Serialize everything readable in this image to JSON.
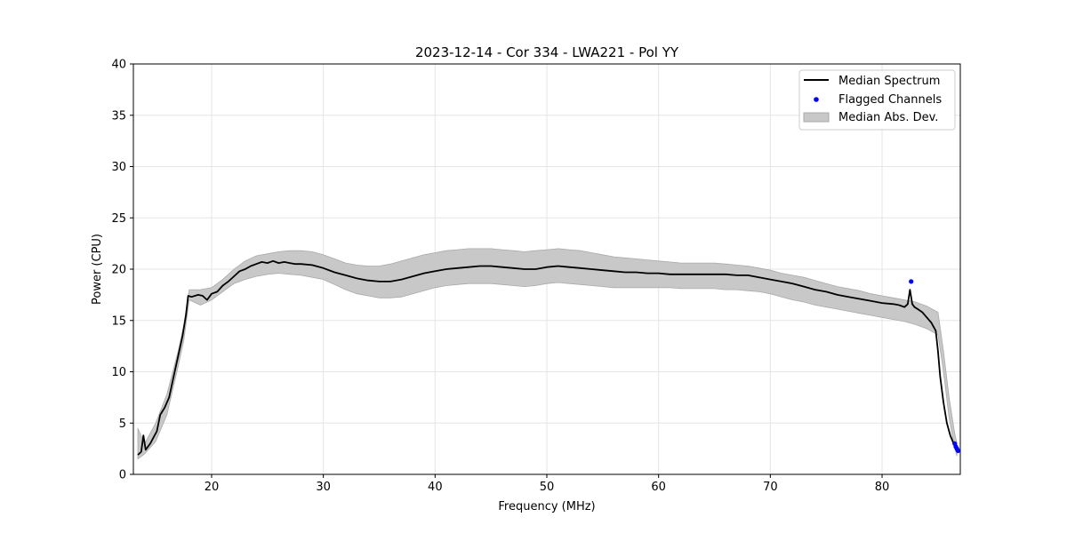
{
  "chart_data": {
    "type": "line",
    "title": "2023-12-14 - Cor 334 - LWA221 - Pol YY",
    "xlabel": "Frequency (MHz)",
    "ylabel": "Power (CPU)",
    "xlim": [
      13.0,
      87.0
    ],
    "ylim": [
      0,
      40
    ],
    "xticks": [
      20,
      30,
      40,
      50,
      60,
      70,
      80
    ],
    "yticks": [
      0,
      5,
      10,
      15,
      20,
      25,
      30,
      35,
      40
    ],
    "grid": true,
    "legend_position": "top-right",
    "legend": [
      "Median Spectrum",
      "Flagged Channels",
      "Median Abs. Dev."
    ],
    "colors": {
      "median": "#000000",
      "flagged": "#0000ff",
      "band": "#c8c8c8",
      "band_edge": "#aaaaaa"
    },
    "series": [
      {
        "name": "Median Spectrum",
        "style": "line",
        "x": [
          13.4,
          13.7,
          13.9,
          14.1,
          14.5,
          14.9,
          15.1,
          15.4,
          15.8,
          16.2,
          16.6,
          17.0,
          17.4,
          17.7,
          17.9,
          18.2,
          18.8,
          19.2,
          19.6,
          20.0,
          20.5,
          21.0,
          21.5,
          22.0,
          22.5,
          23.0,
          23.5,
          24.0,
          24.5,
          25.0,
          25.5,
          26.0,
          26.5,
          27.0,
          27.5,
          28.0,
          29.0,
          30.0,
          31.0,
          32.0,
          33.0,
          34.0,
          35.0,
          36.0,
          37.0,
          38.0,
          39.0,
          40.0,
          41.0,
          42.0,
          43.0,
          44.0,
          45.0,
          46.0,
          47.0,
          48.0,
          49.0,
          50.0,
          51.0,
          52.0,
          53.0,
          54.0,
          55.0,
          56.0,
          57.0,
          58.0,
          59.0,
          60.0,
          61.0,
          62.0,
          63.0,
          64.0,
          65.0,
          66.0,
          67.0,
          68.0,
          69.0,
          70.0,
          71.0,
          72.0,
          73.0,
          74.0,
          75.0,
          76.0,
          77.0,
          78.0,
          79.0,
          80.0,
          81.0,
          81.5,
          82.0,
          82.3,
          82.5,
          82.7,
          82.9,
          83.2,
          83.6,
          84.0,
          84.4,
          84.8,
          85.0,
          85.2,
          85.5,
          85.8,
          86.1,
          86.4,
          86.7
        ],
        "y": [
          1.9,
          2.2,
          3.8,
          2.4,
          3.0,
          3.8,
          4.2,
          5.8,
          6.5,
          7.5,
          9.5,
          11.5,
          13.5,
          15.5,
          17.4,
          17.3,
          17.5,
          17.4,
          17.0,
          17.6,
          17.8,
          18.4,
          18.8,
          19.3,
          19.8,
          20.0,
          20.3,
          20.5,
          20.7,
          20.6,
          20.8,
          20.6,
          20.7,
          20.6,
          20.5,
          20.5,
          20.4,
          20.1,
          19.7,
          19.4,
          19.1,
          18.9,
          18.8,
          18.8,
          19.0,
          19.3,
          19.6,
          19.8,
          20.0,
          20.1,
          20.2,
          20.3,
          20.3,
          20.2,
          20.1,
          20.0,
          20.0,
          20.2,
          20.3,
          20.2,
          20.1,
          20.0,
          19.9,
          19.8,
          19.7,
          19.7,
          19.6,
          19.6,
          19.5,
          19.5,
          19.5,
          19.5,
          19.5,
          19.5,
          19.4,
          19.4,
          19.2,
          19.0,
          18.8,
          18.6,
          18.3,
          18.0,
          17.8,
          17.5,
          17.3,
          17.1,
          16.9,
          16.7,
          16.6,
          16.5,
          16.3,
          16.6,
          18.0,
          16.6,
          16.3,
          16.1,
          15.8,
          15.3,
          14.8,
          14.0,
          12.0,
          9.5,
          7.0,
          5.0,
          3.8,
          3.0,
          2.4
        ]
      },
      {
        "name": "Median Abs. Dev.",
        "style": "band",
        "x": [
          13.4,
          14.0,
          15.0,
          16.0,
          17.0,
          17.5,
          18.0,
          19.0,
          20.0,
          21.0,
          22.0,
          23.0,
          24.0,
          25.0,
          26.0,
          27.0,
          28.0,
          29.0,
          30.0,
          31.0,
          32.0,
          33.0,
          34.0,
          35.0,
          36.0,
          37.0,
          38.0,
          39.0,
          40.0,
          41.0,
          42.0,
          43.0,
          44.0,
          45.0,
          46.0,
          47.0,
          48.0,
          49.0,
          50.0,
          51.0,
          52.0,
          53.0,
          54.0,
          55.0,
          56.0,
          57.0,
          58.0,
          59.0,
          60.0,
          61.0,
          62.0,
          63.0,
          64.0,
          65.0,
          66.0,
          67.0,
          68.0,
          69.0,
          70.0,
          71.0,
          72.0,
          73.0,
          74.0,
          75.0,
          76.0,
          77.0,
          78.0,
          79.0,
          80.0,
          81.0,
          82.0,
          83.0,
          84.0,
          85.0,
          85.5,
          86.0,
          86.5,
          86.7
        ],
        "upper": [
          4.5,
          3.0,
          5.0,
          7.8,
          12.0,
          14.5,
          18.0,
          18.0,
          18.2,
          19.0,
          20.0,
          20.8,
          21.3,
          21.5,
          21.7,
          21.8,
          21.8,
          21.7,
          21.4,
          21.0,
          20.6,
          20.4,
          20.3,
          20.3,
          20.5,
          20.8,
          21.1,
          21.4,
          21.6,
          21.8,
          21.9,
          22.0,
          22.0,
          22.0,
          21.9,
          21.8,
          21.7,
          21.8,
          21.9,
          22.0,
          21.9,
          21.8,
          21.6,
          21.4,
          21.2,
          21.1,
          21.0,
          20.9,
          20.8,
          20.7,
          20.6,
          20.6,
          20.6,
          20.6,
          20.5,
          20.4,
          20.3,
          20.1,
          19.9,
          19.6,
          19.4,
          19.2,
          18.9,
          18.6,
          18.3,
          18.1,
          17.9,
          17.6,
          17.4,
          17.2,
          17.0,
          16.8,
          16.4,
          15.8,
          12.0,
          7.5,
          4.0,
          3.0
        ],
        "lower": [
          1.5,
          2.0,
          3.2,
          5.8,
          10.5,
          13.0,
          17.0,
          16.5,
          17.0,
          17.8,
          18.6,
          19.0,
          19.3,
          19.5,
          19.6,
          19.5,
          19.4,
          19.2,
          19.0,
          18.5,
          18.0,
          17.6,
          17.4,
          17.2,
          17.2,
          17.3,
          17.6,
          17.9,
          18.2,
          18.4,
          18.5,
          18.6,
          18.6,
          18.6,
          18.5,
          18.4,
          18.3,
          18.4,
          18.6,
          18.7,
          18.6,
          18.5,
          18.4,
          18.3,
          18.2,
          18.2,
          18.2,
          18.2,
          18.2,
          18.2,
          18.1,
          18.1,
          18.1,
          18.1,
          18.0,
          18.0,
          17.9,
          17.8,
          17.6,
          17.3,
          17.0,
          16.8,
          16.5,
          16.3,
          16.1,
          15.9,
          15.7,
          15.5,
          15.3,
          15.1,
          14.9,
          14.6,
          14.2,
          13.6,
          10.0,
          5.5,
          2.5,
          1.8
        ]
      },
      {
        "name": "Flagged Channels",
        "style": "scatter",
        "x": [
          82.6,
          86.5,
          86.6,
          86.7,
          86.8
        ],
        "y": [
          18.8,
          3.0,
          2.7,
          2.5,
          2.3
        ]
      }
    ]
  }
}
